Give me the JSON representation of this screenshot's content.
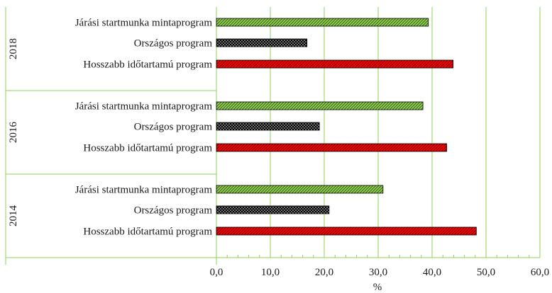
{
  "chart_data": {
    "type": "bar",
    "orientation": "horizontal",
    "title": "",
    "xlabel": "%",
    "ylabel": "",
    "xlim": [
      0,
      60
    ],
    "x_ticks": [
      0,
      10,
      20,
      30,
      40,
      50,
      60
    ],
    "x_tick_labels": [
      "0,0",
      "10,0",
      "20,0",
      "30,0",
      "40,0",
      "50,0",
      "60,0"
    ],
    "grid": "vertical",
    "legend": "none",
    "groups": [
      {
        "year": "2018",
        "bars": [
          {
            "label": "Járási startmunka mintaprogram",
            "value": 39.3,
            "style": "green-diagonal"
          },
          {
            "label": "Országos program",
            "value": 16.8,
            "style": "black-dotted"
          },
          {
            "label": "Hosszabb időtartamú program",
            "value": 43.9,
            "style": "red-diagonal"
          }
        ]
      },
      {
        "year": "2016",
        "bars": [
          {
            "label": "Járási startmunka mintaprogram",
            "value": 38.3,
            "style": "green-diagonal"
          },
          {
            "label": "Országos program",
            "value": 19.1,
            "style": "black-dotted"
          },
          {
            "label": "Hosszabb időtartamú program",
            "value": 42.7,
            "style": "red-diagonal"
          }
        ]
      },
      {
        "year": "2014",
        "bars": [
          {
            "label": "Járási startmunka mintaprogram",
            "value": 30.9,
            "style": "green-diagonal"
          },
          {
            "label": "Országos program",
            "value": 20.9,
            "style": "black-dotted"
          },
          {
            "label": "Hosszabb időtartamú program",
            "value": 48.2,
            "style": "red-diagonal"
          }
        ]
      }
    ],
    "colors": {
      "grid": "#92d050",
      "green_bar": "#92d050",
      "red_bar": "#ff0000",
      "dotted_bar": "#000000"
    }
  }
}
